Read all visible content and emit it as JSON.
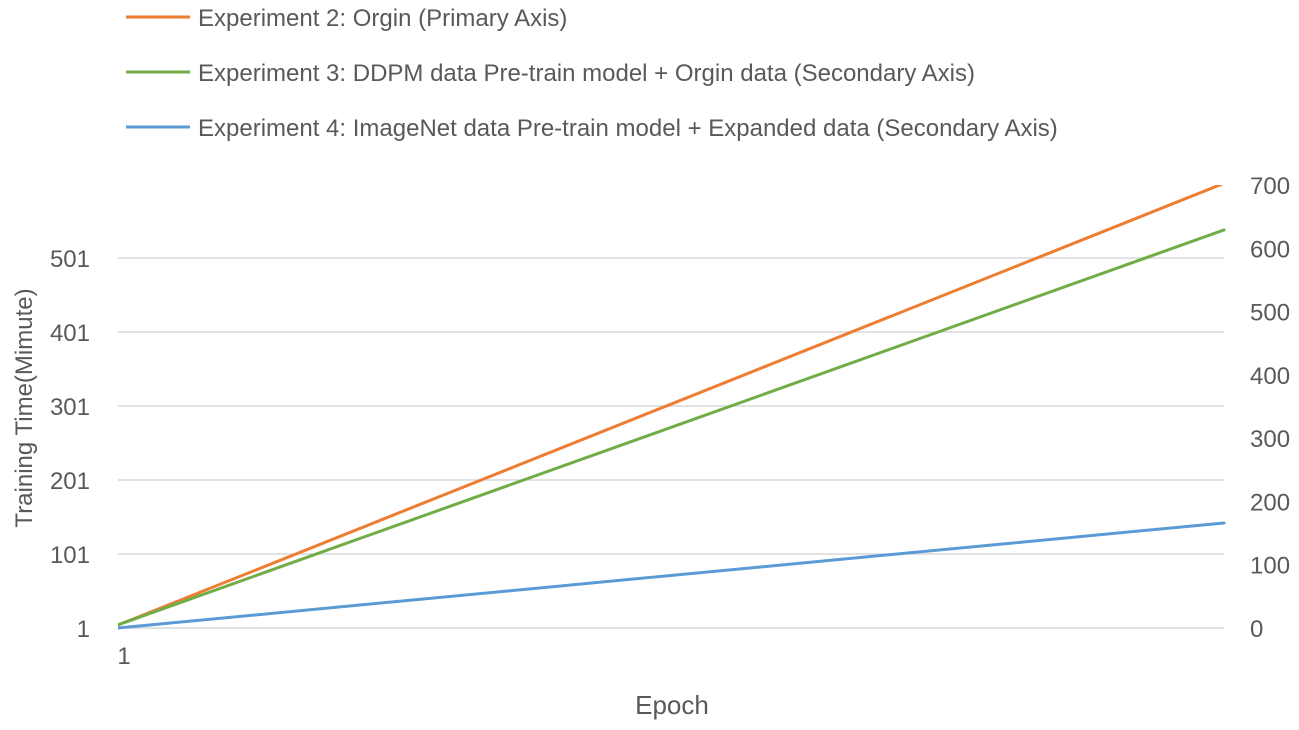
{
  "chart_data": {
    "type": "line",
    "title": "",
    "xlabel": "Epoch",
    "ylabel": "Training Time(Mimute)",
    "x_tick_labels": [
      "1"
    ],
    "y_primary": {
      "ticks": [
        1,
        101,
        201,
        301,
        401,
        501
      ],
      "range": [
        1,
        601
      ]
    },
    "y_secondary": {
      "ticks": [
        0,
        100,
        200,
        300,
        400,
        500,
        600,
        700
      ],
      "range": [
        0,
        700
      ]
    },
    "x_range": [
      1,
      100
    ],
    "grid": true,
    "legend_position": "top-left",
    "series": [
      {
        "name": "Experiment 2: Orgin (Primary Axis)",
        "axis": "primary",
        "color": "#ED7D31",
        "x": [
          1,
          100
        ],
        "y": [
          5,
          602
        ]
      },
      {
        "name": "Experiment 3: DDPM data Pre-train model + Orgin data (Secondary Axis)",
        "axis": "secondary",
        "color": "#70AD47",
        "x": [
          1,
          100
        ],
        "y": [
          5,
          629
        ]
      },
      {
        "name": "Experiment 4: ImageNet data Pre-train model + Expanded data (Secondary Axis)",
        "axis": "secondary",
        "color": "#5B9BD5",
        "x": [
          1,
          100
        ],
        "y": [
          0,
          166
        ]
      }
    ]
  }
}
